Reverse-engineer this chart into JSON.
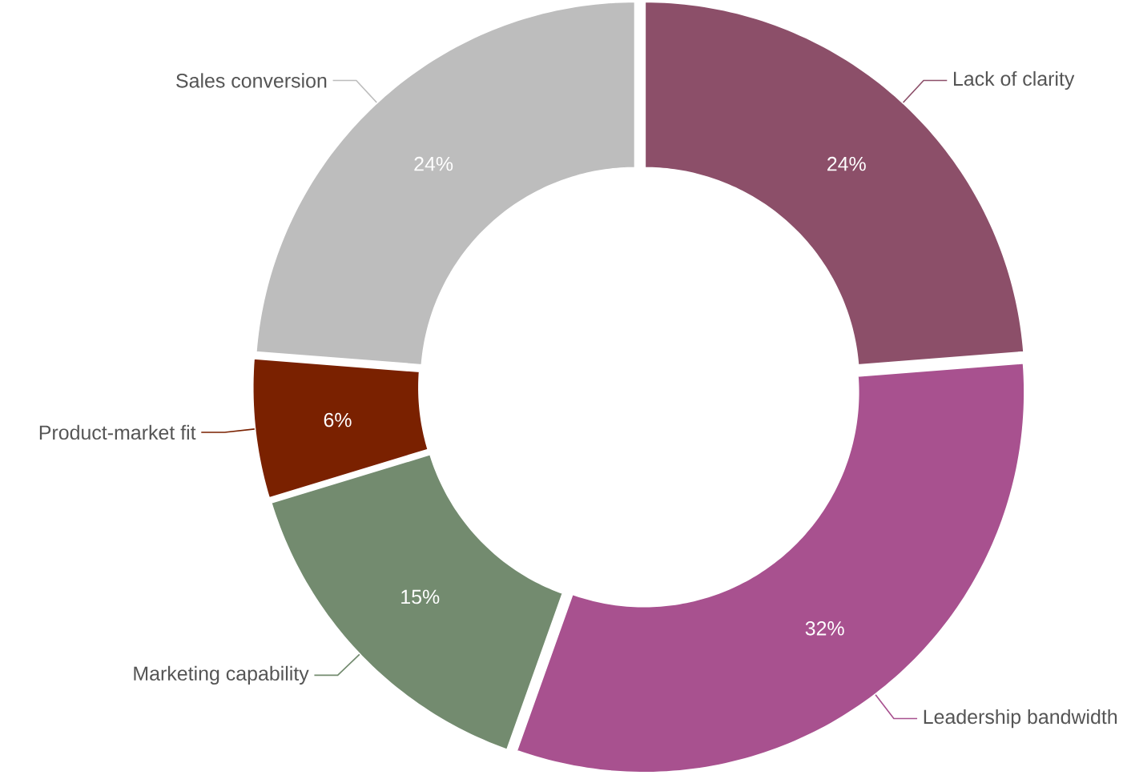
{
  "chart_data": {
    "type": "donut",
    "categories": [
      "Lack of clarity",
      "Leadership bandwidth",
      "Marketing capability",
      "Product-market fit",
      "Sales conversion"
    ],
    "values": [
      24,
      32,
      15,
      6,
      24
    ],
    "colors": [
      "#8c4f69",
      "#a8518f",
      "#738b6f",
      "#7a2100",
      "#bdbdbd"
    ],
    "value_labels": [
      "24%",
      "32%",
      "15%",
      "6%",
      "24%"
    ]
  }
}
